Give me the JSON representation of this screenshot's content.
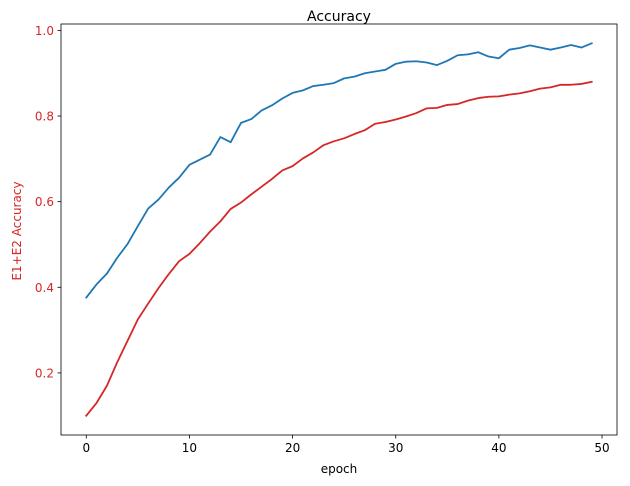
{
  "chart_data": {
    "type": "line",
    "title": "Accuracy",
    "xlabel": "epoch",
    "ylabel": "E1+E2 Accuracy",
    "xlim": [
      -2.45,
      51.45
    ],
    "ylim": [
      0.055,
      1.015
    ],
    "xticks": [
      0,
      10,
      20,
      30,
      40,
      50
    ],
    "xtick_labels": [
      "0",
      "10",
      "20",
      "30",
      "40",
      "50"
    ],
    "yticks": [
      0.2,
      0.4,
      0.6,
      0.8,
      1.0
    ],
    "ytick_labels": [
      "0.2",
      "0.4",
      "0.6",
      "0.8",
      "1.0"
    ],
    "ytick_color": "#d62728",
    "ylabel_color": "#d62728",
    "grid": false,
    "legend": "none",
    "x": [
      0,
      1,
      2,
      3,
      4,
      5,
      6,
      7,
      8,
      9,
      10,
      11,
      12,
      13,
      14,
      15,
      16,
      17,
      18,
      19,
      20,
      21,
      22,
      23,
      24,
      25,
      26,
      27,
      28,
      29,
      30,
      31,
      32,
      33,
      34,
      35,
      36,
      37,
      38,
      39,
      40,
      41,
      42,
      43,
      44,
      45,
      46,
      47,
      48,
      49
    ],
    "series": [
      {
        "color": "#d62728",
        "values": [
          0.1,
          0.13,
          0.17,
          0.225,
          0.275,
          0.325,
          0.362,
          0.398,
          0.431,
          0.461,
          0.478,
          0.503,
          0.53,
          0.554,
          0.583,
          0.598,
          0.617,
          0.635,
          0.653,
          0.673,
          0.683,
          0.701,
          0.715,
          0.732,
          0.741,
          0.748,
          0.758,
          0.767,
          0.782,
          0.786,
          0.792,
          0.799,
          0.807,
          0.818,
          0.819,
          0.826,
          0.828,
          0.836,
          0.842,
          0.845,
          0.846,
          0.85,
          0.853,
          0.858,
          0.864,
          0.867,
          0.873,
          0.873,
          0.875,
          0.88
        ]
      },
      {
        "color": "#1f77b4",
        "values": [
          0.376,
          0.407,
          0.432,
          0.469,
          0.501,
          0.543,
          0.584,
          0.605,
          0.633,
          0.656,
          0.686,
          0.698,
          0.71,
          0.751,
          0.739,
          0.784,
          0.793,
          0.813,
          0.825,
          0.841,
          0.854,
          0.86,
          0.87,
          0.873,
          0.877,
          0.888,
          0.892,
          0.9,
          0.904,
          0.908,
          0.922,
          0.927,
          0.928,
          0.925,
          0.919,
          0.929,
          0.942,
          0.944,
          0.949,
          0.939,
          0.935,
          0.955,
          0.959,
          0.965,
          0.96,
          0.955,
          0.96,
          0.966,
          0.96,
          0.97
        ]
      }
    ]
  }
}
